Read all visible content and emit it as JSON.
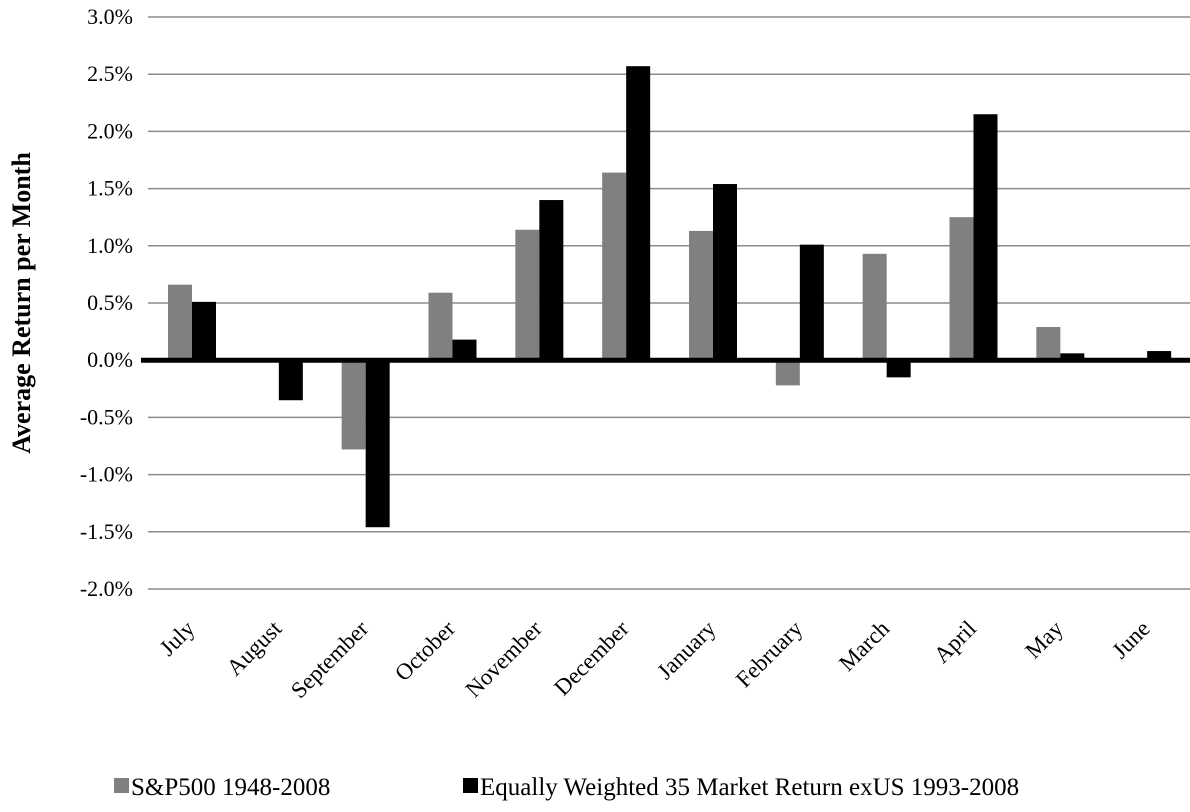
{
  "chart_data": {
    "type": "bar",
    "ylabel": "Average Return per Month",
    "ylim": [
      -0.02,
      0.03
    ],
    "ytick_step": 0.005,
    "ytick_format": "percent_1dp",
    "grid": true,
    "legend_position": "bottom",
    "categories": [
      "July",
      "August",
      "September",
      "October",
      "November",
      "December",
      "January",
      "February",
      "March",
      "April",
      "May",
      "June"
    ],
    "series": [
      {
        "name": "S&P500 1948-2008",
        "color": "#808080",
        "values": [
          0.0066,
          0.0,
          -0.0078,
          0.0059,
          0.0114,
          0.0164,
          0.0113,
          -0.0022,
          0.0093,
          0.0125,
          0.0029,
          0.0
        ]
      },
      {
        "name": "Equally Weighted 35 Market Return exUS 1993-2008",
        "color": "#000000",
        "values": [
          0.0051,
          -0.0035,
          -0.0146,
          0.0018,
          0.014,
          0.0257,
          0.0154,
          0.0101,
          -0.0015,
          0.0215,
          0.0006,
          0.0008
        ]
      }
    ]
  }
}
